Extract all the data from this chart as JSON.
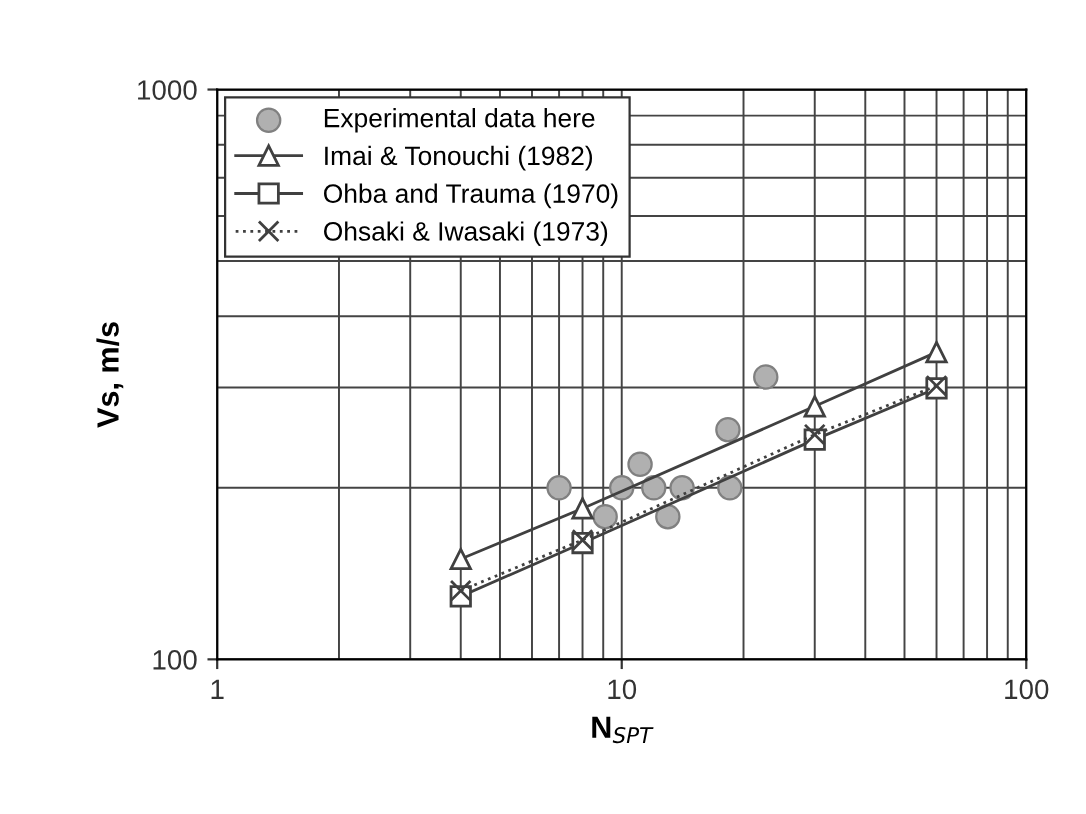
{
  "chart_data": {
    "type": "line",
    "xlabel": "N$_{SPT}$",
    "ylabel": "Vs, m/s",
    "log": "xy",
    "xlim": [
      1,
      100
    ],
    "ylim": [
      100,
      1000
    ],
    "xticks": [
      1,
      10,
      100
    ],
    "yticks": [
      100,
      1000
    ],
    "grid": true,
    "legend": "top left",
    "series": [
      {
        "name": "Experimental data here",
        "type": "scatter",
        "marker": "circle",
        "color": "#b0b0b0",
        "x": [
          7,
          9.1,
          10,
          11.1,
          12,
          13,
          14.1,
          18.5,
          18.3,
          22.7
        ],
        "values": [
          200,
          178,
          200,
          220,
          200,
          178,
          200,
          200,
          253,
          313
        ]
      },
      {
        "name": "Imai & Tonouchi (1982)",
        "marker": "triangle",
        "line_style": "solid",
        "color": "#404040",
        "x": [
          4,
          8,
          30,
          60
        ],
        "values": [
          150,
          184,
          278,
          346
        ]
      },
      {
        "name": "Ohba and Trauma (1970)",
        "marker": "square",
        "line_style": "solid",
        "color": "#404040",
        "x": [
          4,
          8,
          30,
          60
        ],
        "values": [
          129,
          160,
          243,
          299
        ]
      },
      {
        "name": "Ohsaki & Iwasaki (1973)",
        "marker": "cross",
        "line_style": "dotted",
        "color": "#404040",
        "x": [
          4,
          8,
          30,
          60
        ],
        "values": [
          132,
          162,
          248,
          302
        ]
      }
    ]
  }
}
